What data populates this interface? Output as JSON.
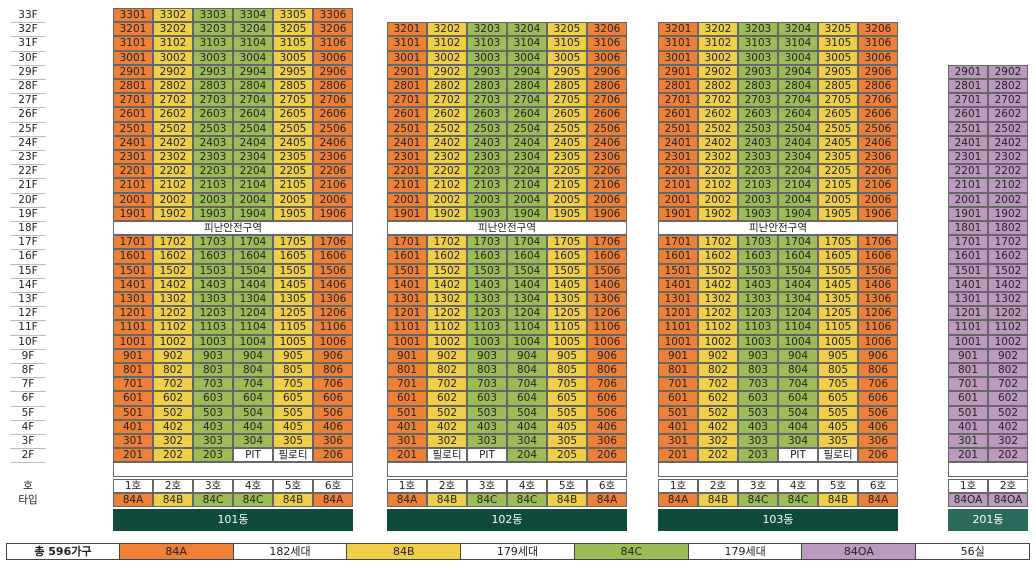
{
  "floors": [
    "33F",
    "32F",
    "31F",
    "30F",
    "29F",
    "28F",
    "27F",
    "26F",
    "25F",
    "24F",
    "23F",
    "22F",
    "21F",
    "20F",
    "19F",
    "18F",
    "17F",
    "16F",
    "15F",
    "14F",
    "13F",
    "12F",
    "11F",
    "10F",
    "9F",
    "8F",
    "7F",
    "6F",
    "5F",
    "4F",
    "3F",
    "2F"
  ],
  "row_labels": {
    "ho": "호",
    "type": "타입"
  },
  "shelter_label": "피난안전구역",
  "pit_label": "PIT",
  "piloti_label": "필로티",
  "colors": {
    "84A": "#ee8037",
    "84B": "#f0cf48",
    "84C": "#9cbd56",
    "84OA": "#bc99bf",
    "bar": "#0f4b3c"
  },
  "buildings": [
    {
      "name": "101동",
      "top_floor": 33,
      "units": 6,
      "ho": [
        "1호",
        "2호",
        "3호",
        "4호",
        "5호",
        "6호"
      ],
      "types": [
        "84A",
        "84B",
        "84C",
        "84C",
        "84B",
        "84A"
      ],
      "floor2": [
        "201",
        "202",
        "203",
        "PIT",
        "필로티",
        "206"
      ],
      "floor2_types": [
        "84A",
        "84B",
        "84C",
        "special",
        "special",
        "84A"
      ]
    },
    {
      "name": "102동",
      "top_floor": 32,
      "units": 6,
      "ho": [
        "1호",
        "2호",
        "3호",
        "4호",
        "5호",
        "6호"
      ],
      "types": [
        "84A",
        "84B",
        "84C",
        "84C",
        "84B",
        "84A"
      ],
      "floor2": [
        "201",
        "필로티",
        "PIT",
        "204",
        "205",
        "206"
      ],
      "floor2_types": [
        "84A",
        "special",
        "special",
        "84C",
        "84B",
        "84A"
      ]
    },
    {
      "name": "103동",
      "top_floor": 32,
      "units": 6,
      "ho": [
        "1호",
        "2호",
        "3호",
        "4호",
        "5호",
        "6호"
      ],
      "types": [
        "84A",
        "84B",
        "84C",
        "84C",
        "84B",
        "84A"
      ],
      "floor2": [
        "201",
        "202",
        "203",
        "PIT",
        "필로티",
        "206"
      ],
      "floor2_types": [
        "84A",
        "84B",
        "84C",
        "special",
        "special",
        "84A"
      ]
    },
    {
      "name": "201동",
      "top_floor": 29,
      "units": 2,
      "ho": [
        "1호",
        "2호"
      ],
      "types": [
        "84OA",
        "84OA"
      ],
      "floor2": [
        "201",
        "202"
      ],
      "floor2_types": [
        "84OA",
        "84OA"
      ]
    }
  ],
  "legend": {
    "total": "총 596가구",
    "items": [
      {
        "type": "84A",
        "count": "182세대"
      },
      {
        "type": "84B",
        "count": "179세대"
      },
      {
        "type": "84C",
        "count": "179세대"
      },
      {
        "type": "84OA",
        "count": "56실"
      }
    ]
  }
}
